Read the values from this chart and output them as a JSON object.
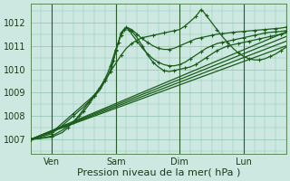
{
  "background_color": "#cce8e0",
  "grid_color": "#98c8b8",
  "line_color": "#1a5c1a",
  "marker_color": "#1a5c1a",
  "xlabel": "Pression niveau de la mer( hPa )",
  "xlabel_fontsize": 8,
  "yticks": [
    1007,
    1008,
    1009,
    1010,
    1011,
    1012
  ],
  "ylim": [
    1006.4,
    1012.8
  ],
  "xlim": [
    0,
    96
  ],
  "xtick_positions": [
    8,
    32,
    56,
    80
  ],
  "xtick_labels": [
    "Ven",
    "Sam",
    "Dim",
    "Lun"
  ],
  "vline_positions": [
    8,
    32,
    56,
    80
  ],
  "series": [
    {
      "x": [
        0,
        96
      ],
      "y": [
        1007.0,
        1011.0
      ],
      "marker": false,
      "lw": 0.9
    },
    {
      "x": [
        0,
        96
      ],
      "y": [
        1007.0,
        1011.2
      ],
      "marker": false,
      "lw": 0.9
    },
    {
      "x": [
        0,
        96
      ],
      "y": [
        1007.0,
        1011.4
      ],
      "marker": false,
      "lw": 0.9
    },
    {
      "x": [
        0,
        96
      ],
      "y": [
        1007.0,
        1011.6
      ],
      "marker": false,
      "lw": 0.9
    },
    {
      "x": [
        0,
        4,
        8,
        12,
        16,
        20,
        24,
        28,
        30,
        31,
        32,
        33,
        34,
        36,
        38,
        40,
        42,
        44,
        46,
        48,
        50,
        52,
        54,
        56,
        58,
        60,
        62,
        64,
        66,
        68,
        70,
        72,
        74,
        76,
        78,
        80,
        82,
        84,
        86,
        88,
        90,
        92,
        94,
        96
      ],
      "y": [
        1007.0,
        1007.15,
        1007.3,
        1007.7,
        1008.1,
        1008.5,
        1008.9,
        1009.5,
        1009.9,
        1010.3,
        1010.8,
        1011.15,
        1011.55,
        1011.75,
        1011.65,
        1011.35,
        1011.0,
        1010.6,
        1010.3,
        1010.1,
        1009.95,
        1009.9,
        1009.95,
        1010.0,
        1010.05,
        1010.1,
        1010.2,
        1010.35,
        1010.5,
        1010.65,
        1010.8,
        1010.9,
        1011.0,
        1011.05,
        1011.1,
        1011.15,
        1011.2,
        1011.25,
        1011.3,
        1011.35,
        1011.4,
        1011.45,
        1011.5,
        1011.55
      ],
      "marker": true,
      "lw": 0.9
    },
    {
      "x": [
        0,
        4,
        8,
        12,
        16,
        20,
        24,
        26,
        28,
        30,
        31,
        32,
        33,
        34,
        35,
        36,
        37,
        38,
        40,
        42,
        44,
        46,
        48,
        50,
        52,
        54,
        56,
        58,
        60,
        62,
        64,
        66,
        68,
        70,
        72,
        74,
        76,
        78,
        80,
        82,
        84,
        86,
        88,
        90,
        92,
        94,
        96
      ],
      "y": [
        1007.0,
        1007.1,
        1007.25,
        1007.6,
        1008.0,
        1008.4,
        1008.85,
        1009.1,
        1009.5,
        1009.95,
        1010.35,
        1010.75,
        1011.15,
        1011.55,
        1011.7,
        1011.8,
        1011.7,
        1011.5,
        1011.2,
        1010.9,
        1010.65,
        1010.45,
        1010.3,
        1010.2,
        1010.15,
        1010.15,
        1010.2,
        1010.3,
        1010.45,
        1010.6,
        1010.75,
        1010.9,
        1011.0,
        1011.1,
        1011.15,
        1011.2,
        1011.25,
        1011.3,
        1011.35,
        1011.4,
        1011.45,
        1011.5,
        1011.55,
        1011.58,
        1011.6,
        1011.62,
        1011.65
      ],
      "marker": true,
      "lw": 0.9
    },
    {
      "x": [
        0,
        4,
        8,
        12,
        16,
        18,
        20,
        22,
        24,
        26,
        28,
        29,
        30,
        31,
        32,
        33,
        34,
        35,
        36,
        38,
        40,
        42,
        44,
        46,
        48,
        50,
        52,
        54,
        56,
        58,
        60,
        62,
        64,
        66,
        68,
        70,
        72,
        74,
        76,
        78,
        80,
        82,
        84,
        86,
        88,
        90,
        92,
        94,
        96
      ],
      "y": [
        1007.0,
        1007.05,
        1007.15,
        1007.4,
        1007.75,
        1007.95,
        1008.2,
        1008.5,
        1008.85,
        1009.2,
        1009.6,
        1009.85,
        1010.15,
        1010.5,
        1010.85,
        1011.15,
        1011.45,
        1011.7,
        1011.8,
        1011.7,
        1011.5,
        1011.3,
        1011.15,
        1011.0,
        1010.9,
        1010.85,
        1010.85,
        1010.9,
        1011.0,
        1011.1,
        1011.2,
        1011.3,
        1011.35,
        1011.4,
        1011.45,
        1011.5,
        1011.52,
        1011.55,
        1011.58,
        1011.6,
        1011.62,
        1011.64,
        1011.66,
        1011.68,
        1011.7,
        1011.72,
        1011.74,
        1011.76,
        1011.8
      ],
      "marker": true,
      "lw": 0.9
    },
    {
      "x": [
        0,
        4,
        8,
        12,
        14,
        16,
        18,
        20,
        22,
        24,
        26,
        28,
        30,
        32,
        34,
        36,
        38,
        40,
        42,
        44,
        46,
        48,
        50,
        52,
        54,
        56,
        58,
        60,
        62,
        63,
        64,
        65,
        66,
        68,
        70,
        72,
        74,
        76,
        78,
        80,
        82,
        84,
        86,
        88,
        90,
        92,
        94,
        96
      ],
      "y": [
        1007.0,
        1007.05,
        1007.1,
        1007.3,
        1007.5,
        1007.75,
        1008.0,
        1008.3,
        1008.6,
        1008.9,
        1009.2,
        1009.55,
        1009.9,
        1010.25,
        1010.6,
        1010.9,
        1011.1,
        1011.25,
        1011.35,
        1011.4,
        1011.45,
        1011.5,
        1011.55,
        1011.6,
        1011.65,
        1011.7,
        1011.85,
        1012.05,
        1012.25,
        1012.4,
        1012.55,
        1012.45,
        1012.3,
        1012.0,
        1011.7,
        1011.4,
        1011.15,
        1010.9,
        1010.7,
        1010.55,
        1010.45,
        1010.4,
        1010.4,
        1010.45,
        1010.55,
        1010.65,
        1010.8,
        1010.95
      ],
      "marker": true,
      "lw": 0.9
    }
  ]
}
